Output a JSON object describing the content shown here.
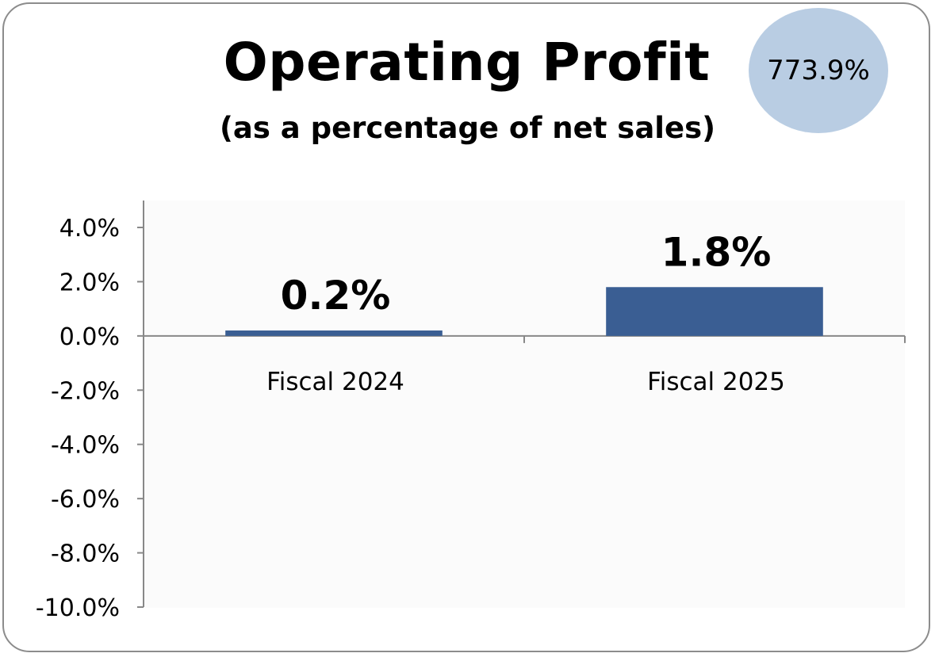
{
  "header": {
    "title": "Operating Profit",
    "subtitle": "(as a percentage of net sales)",
    "badge_value": "773.9%"
  },
  "colors": {
    "bar": "#3a5e93",
    "badge": "#b9cde3",
    "axis": "#888888",
    "border": "#8c8c8c"
  },
  "chart_data": {
    "type": "bar",
    "title": "Operating Profit",
    "subtitle": "(as a percentage of net sales)",
    "categories": [
      "Fiscal 2024",
      "Fiscal 2025"
    ],
    "values": [
      0.2,
      1.8
    ],
    "data_labels": [
      "0.2%",
      "1.8%"
    ],
    "ylim": [
      -10,
      4
    ],
    "y_ticks": [
      4,
      2,
      0,
      -2,
      -4,
      -6,
      -8,
      -10
    ],
    "y_tick_labels": [
      "4.0%",
      "2.0%",
      "0.0%",
      "-2.0%",
      "-4.0%",
      "-6.0%",
      "-8.0%",
      "-10.0%"
    ],
    "xlabel": "",
    "ylabel": "",
    "grid": false,
    "legend": "none"
  }
}
